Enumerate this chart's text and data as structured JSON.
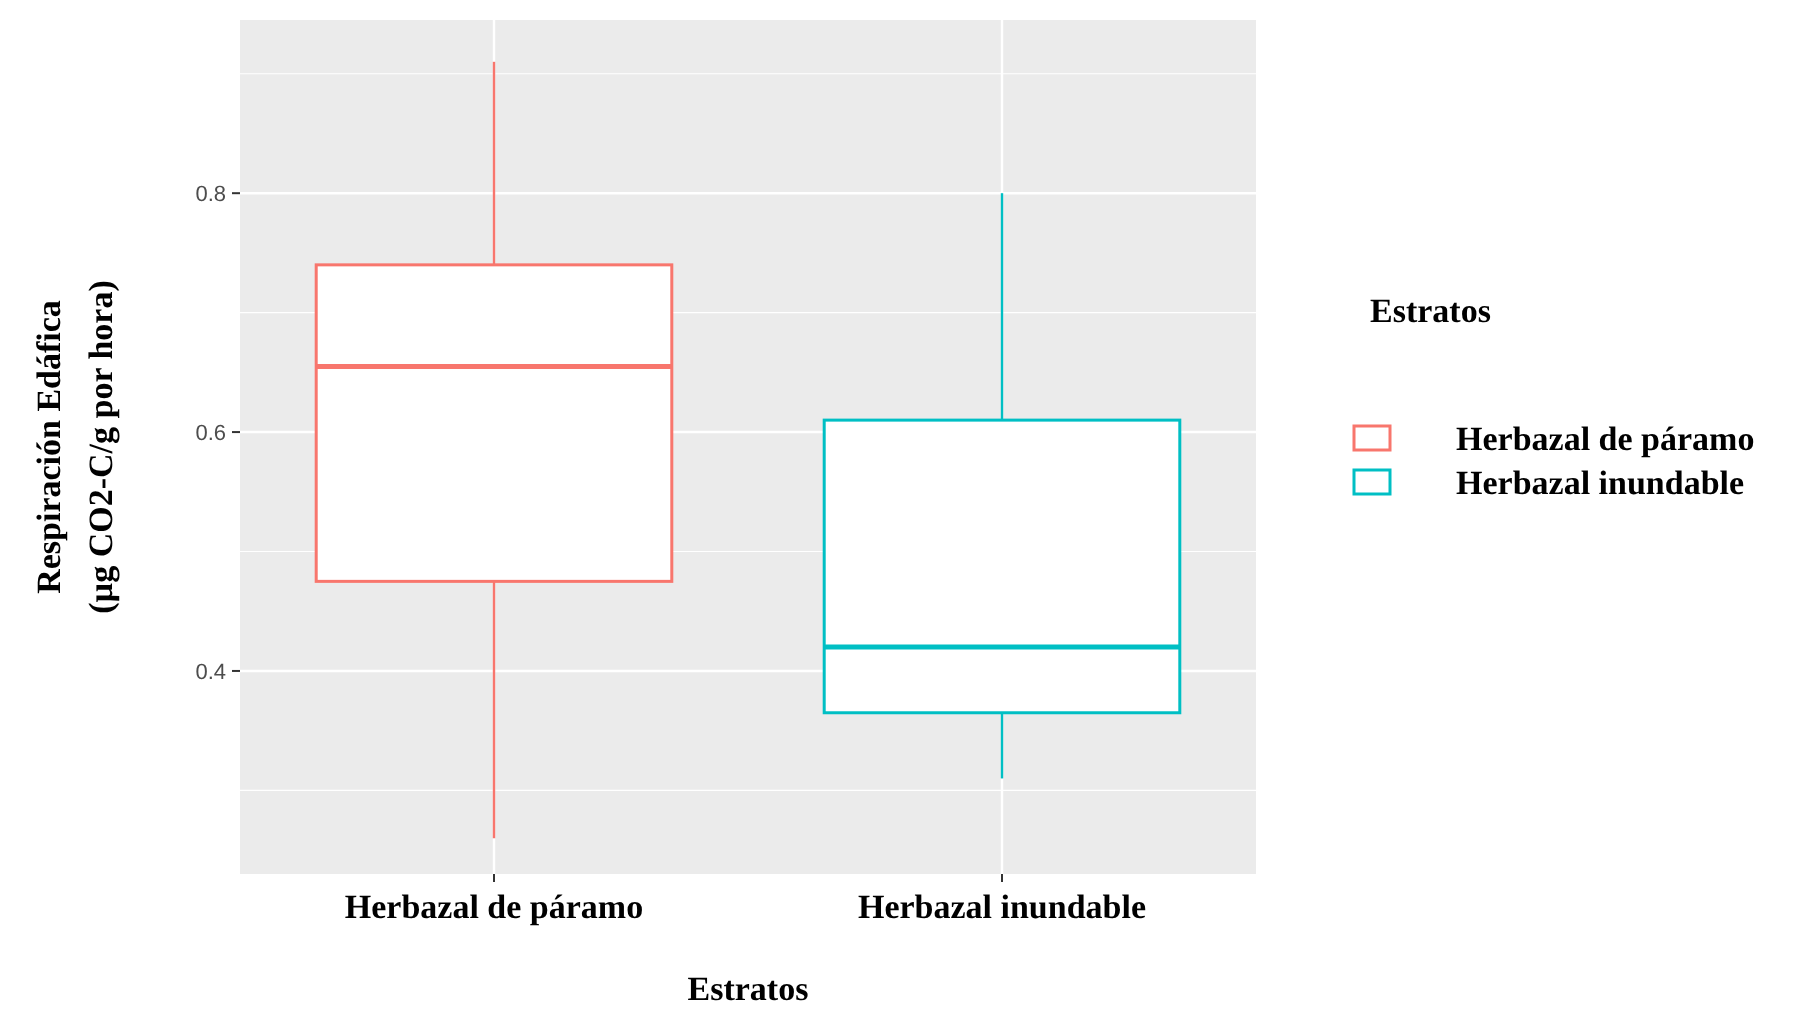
{
  "chart_data": {
    "type": "box",
    "xlabel": "Estratos",
    "ylabel": "Respiración Edáfica\n(µg CO2-C/g por hora)",
    "legend_title": "Estratos",
    "categories": [
      "Herbazal de páramo",
      "Herbazal inundable"
    ],
    "series": [
      {
        "name": "Herbazal de páramo",
        "color": "#f8766d",
        "boxes": [
          {
            "low": 0.26,
            "q1": 0.475,
            "median": 0.655,
            "q3": 0.74,
            "high": 0.91
          },
          null
        ]
      },
      {
        "name": "Herbazal inundable",
        "color": "#00bfc4",
        "boxes": [
          null,
          {
            "low": 0.31,
            "q1": 0.365,
            "median": 0.42,
            "q3": 0.61,
            "high": 0.8
          }
        ]
      }
    ],
    "ylim": [
      0.23,
      0.945
    ],
    "yticks": [
      {
        "value": 0.4,
        "label": "0.4"
      },
      {
        "value": 0.6,
        "label": "0.6"
      },
      {
        "value": 0.8,
        "label": "0.8"
      }
    ],
    "grid": true,
    "legend": "right"
  }
}
